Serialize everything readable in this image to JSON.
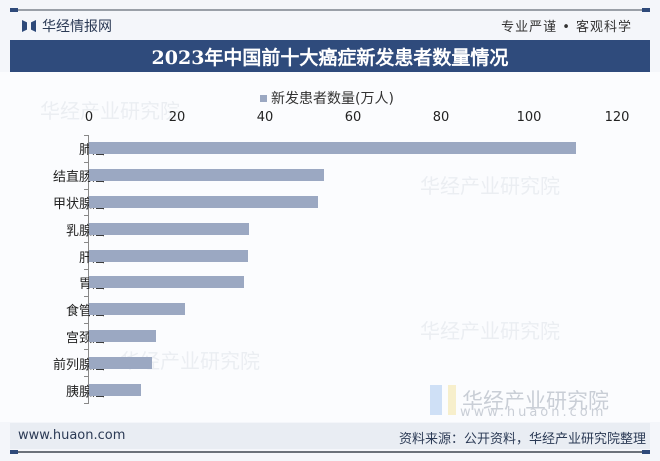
{
  "header": {
    "brand": "华经情报网",
    "slogan": "专业严谨 • 客观科学",
    "title": "2023年中国前十大癌症新发患者数量情况"
  },
  "legend": {
    "label": "新发患者数量(万人)",
    "color": "#9ba8c2"
  },
  "watermark": {
    "name": "华经产业研究院",
    "url": "www.huaon.com",
    "faint": "华经产业研究院"
  },
  "footer": {
    "url": "www.huaon.com",
    "source": "资料来源：公开资料，华经产业研究院整理"
  },
  "chart_data": {
    "type": "bar",
    "orientation": "horizontal",
    "title": "2023年中国前十大癌症新发患者数量情况",
    "xlabel": "",
    "ylabel": "",
    "xlim": [
      0,
      120
    ],
    "ticks": [
      "0",
      "20",
      "40",
      "60",
      "80",
      "100",
      "120"
    ],
    "legend_position": "top",
    "grid": false,
    "categories": [
      "肺癌",
      "结直肠癌",
      "甲状腺癌",
      "乳腺癌",
      "肝癌",
      "胃癌",
      "食管癌",
      "宫颈癌",
      "前列腺癌",
      "胰腺癌"
    ],
    "series": [
      {
        "name": "新发患者数量(万人)",
        "color": "#9ba8c2",
        "values": [
          110.6,
          53.5,
          52.0,
          36.4,
          36.1,
          35.2,
          21.8,
          15.2,
          14.3,
          11.8
        ]
      }
    ]
  }
}
